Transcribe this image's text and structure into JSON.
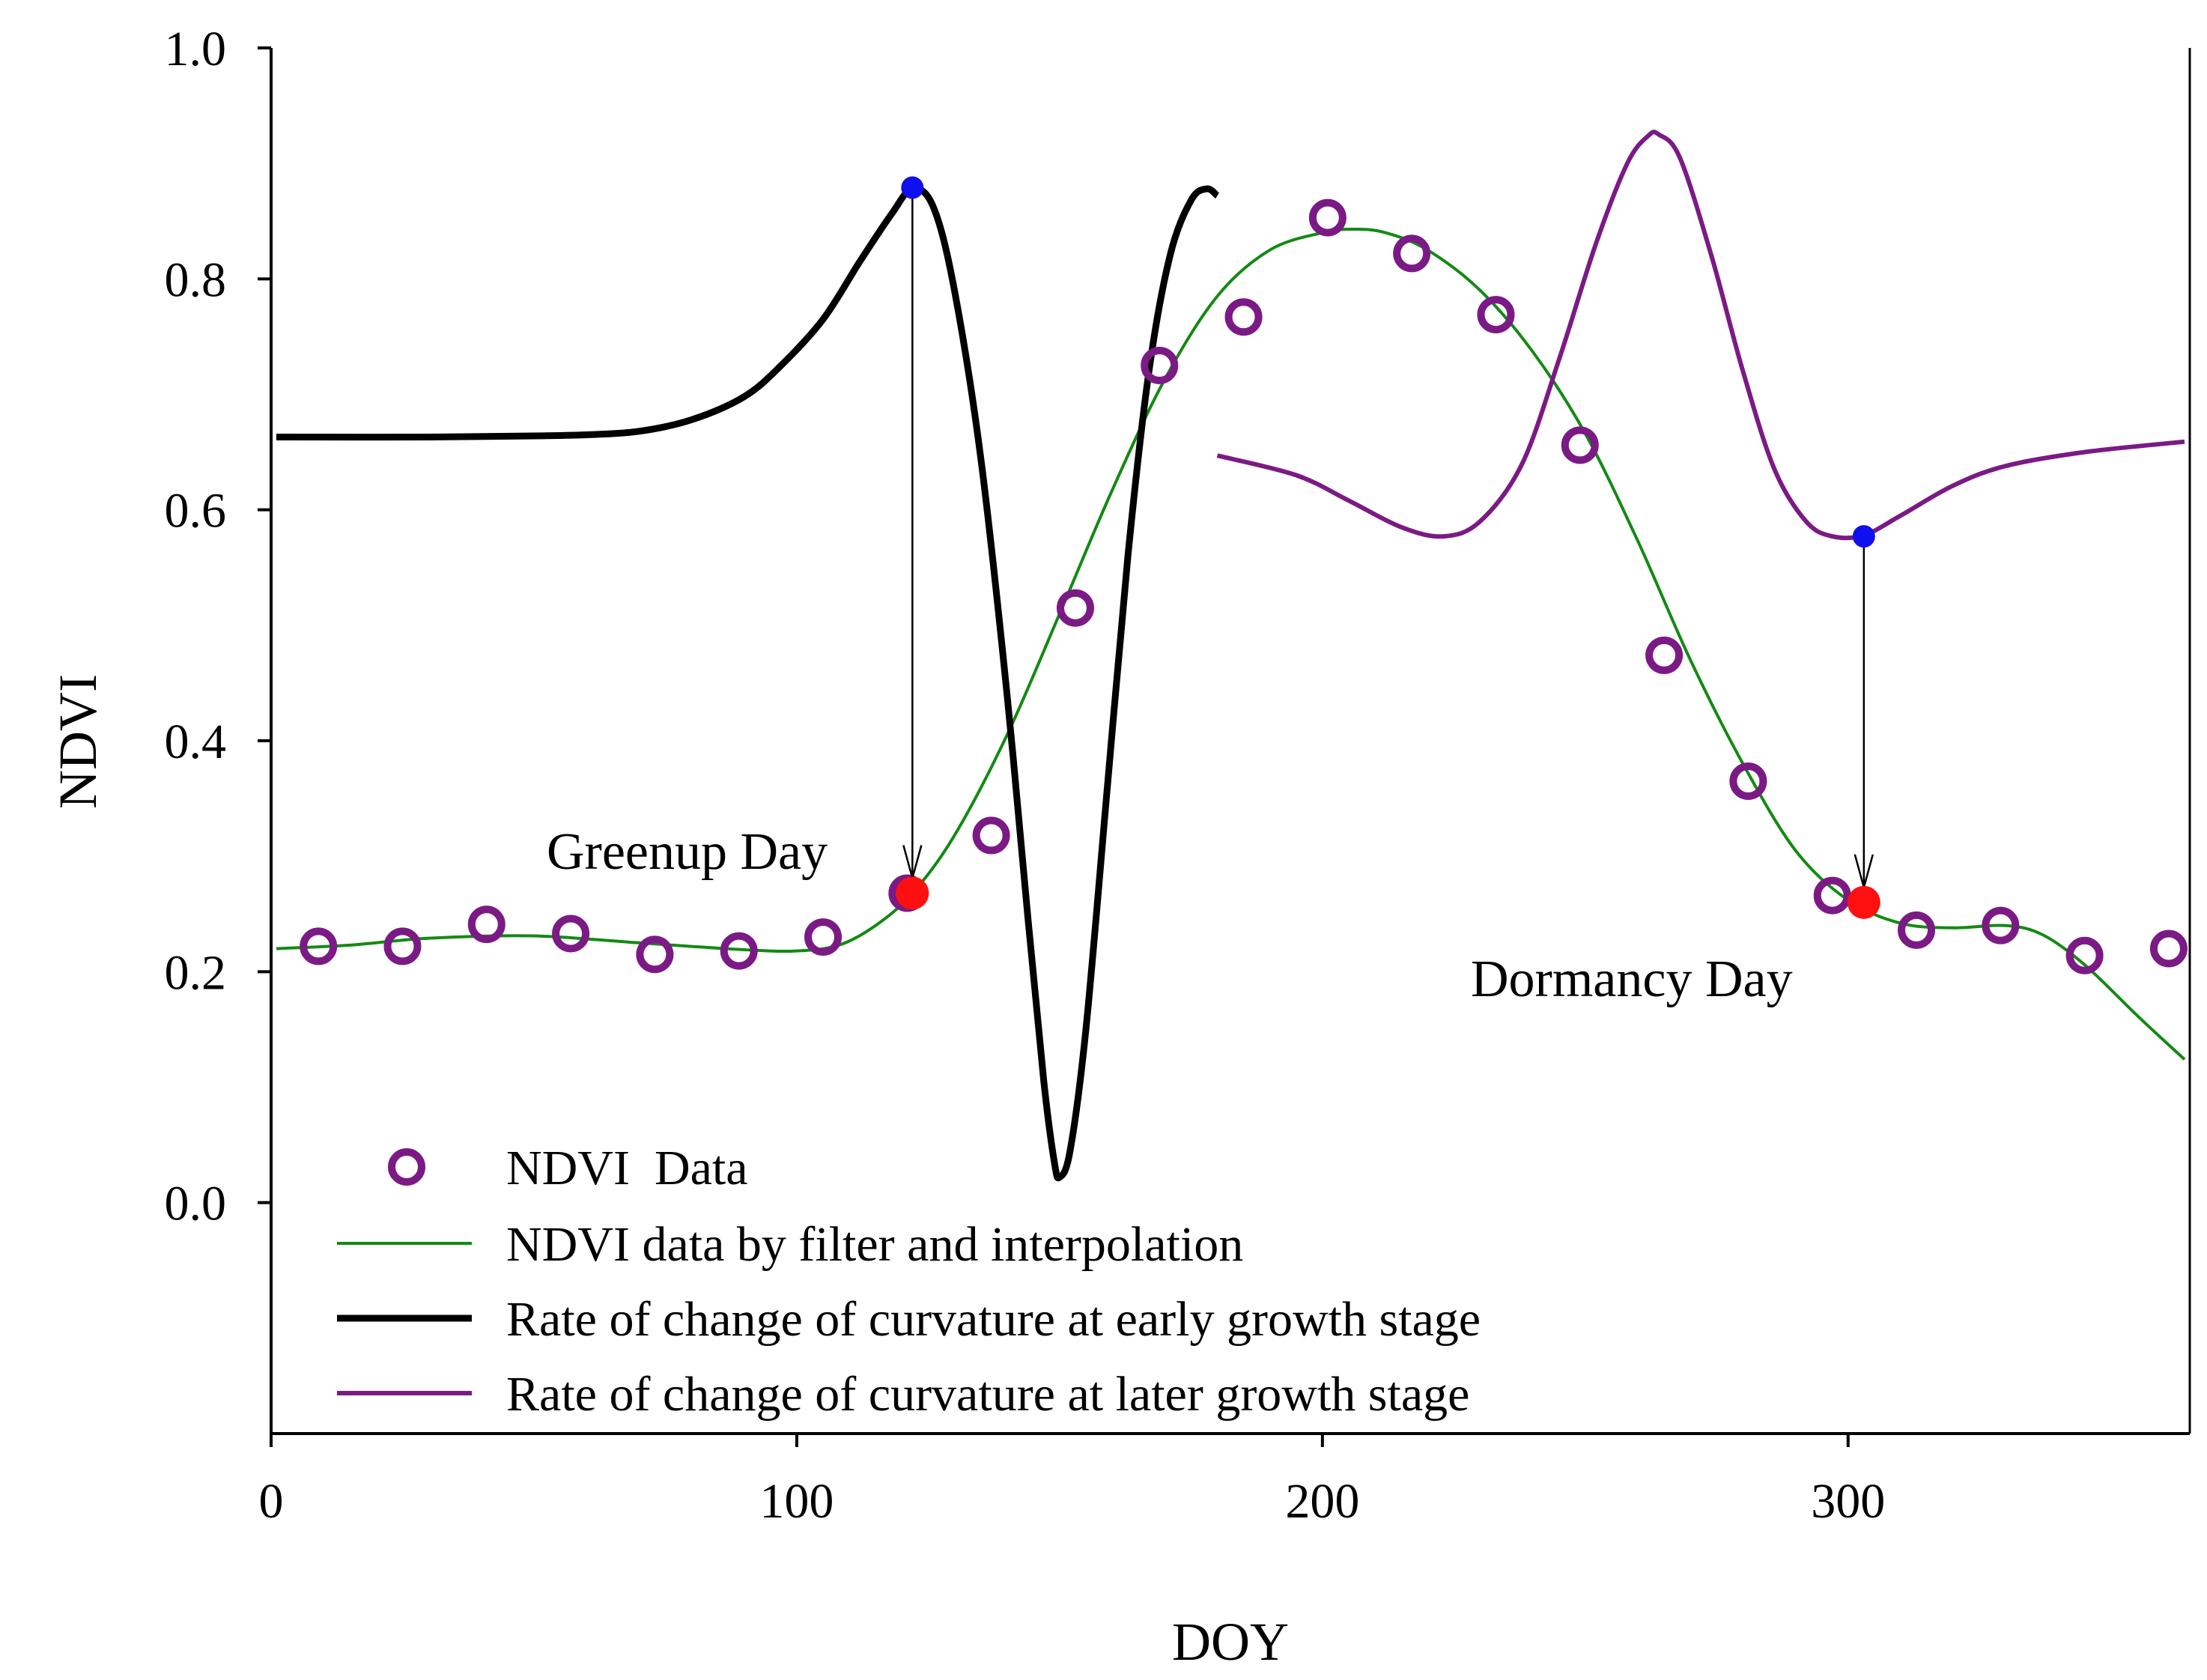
{
  "chart_data": {
    "type": "line",
    "xlabel": "DOY",
    "ylabel": "NDVI",
    "xlim": [
      0,
      365
    ],
    "ylim": [
      -0.2,
      1.0
    ],
    "x_ticks": [
      0,
      100,
      200,
      300
    ],
    "x_tick_labels": [
      "0",
      "100",
      "200",
      "300"
    ],
    "y_ticks": [
      0.0,
      0.2,
      0.4,
      0.6,
      0.8,
      1.0
    ],
    "y_tick_labels": [
      "0.0",
      "0.2",
      "0.4",
      "0.6",
      "0.8",
      "1.0"
    ],
    "grid": false,
    "legend_position": "bottom-left",
    "colors": {
      "ndvi_points": "#7b1a85",
      "ndvi_fitted": "#138a13",
      "early_rate": "#000000",
      "later_rate": "#7b1a85",
      "key_point": "#1010ee",
      "event_point": "#ff1010",
      "arrow": "#000000"
    },
    "series": [
      {
        "name": "NDVI  Data",
        "style": "open-circle",
        "points": [
          [
            9,
            0.222
          ],
          [
            25,
            0.222
          ],
          [
            41,
            0.241
          ],
          [
            57,
            0.233
          ],
          [
            73,
            0.215
          ],
          [
            89,
            0.218
          ],
          [
            105,
            0.23
          ],
          [
            121,
            0.268
          ],
          [
            137,
            0.318
          ],
          [
            153,
            0.515
          ],
          [
            169,
            0.725
          ],
          [
            185,
            0.767
          ],
          [
            201,
            0.853
          ],
          [
            217,
            0.822
          ],
          [
            233,
            0.769
          ],
          [
            249,
            0.656
          ],
          [
            265,
            0.474
          ],
          [
            281,
            0.365
          ],
          [
            297,
            0.266
          ],
          [
            313,
            0.236
          ],
          [
            329,
            0.24
          ],
          [
            345,
            0.214
          ],
          [
            361,
            0.22
          ]
        ]
      },
      {
        "name": "NDVI data by filter and interpolation",
        "style": "thin-line",
        "points": [
          [
            1,
            0.22
          ],
          [
            15,
            0.223
          ],
          [
            30,
            0.229
          ],
          [
            50,
            0.231
          ],
          [
            70,
            0.225
          ],
          [
            90,
            0.219
          ],
          [
            100,
            0.218
          ],
          [
            108,
            0.223
          ],
          [
            115,
            0.24
          ],
          [
            122,
            0.268
          ],
          [
            130,
            0.318
          ],
          [
            140,
            0.405
          ],
          [
            150,
            0.51
          ],
          [
            160,
            0.617
          ],
          [
            170,
            0.713
          ],
          [
            180,
            0.785
          ],
          [
            190,
            0.825
          ],
          [
            200,
            0.84
          ],
          [
            206,
            0.843
          ],
          [
            212,
            0.84
          ],
          [
            220,
            0.825
          ],
          [
            230,
            0.79
          ],
          [
            240,
            0.737
          ],
          [
            250,
            0.666
          ],
          [
            260,
            0.573
          ],
          [
            270,
            0.47
          ],
          [
            280,
            0.38
          ],
          [
            290,
            0.305
          ],
          [
            300,
            0.262
          ],
          [
            310,
            0.242
          ],
          [
            320,
            0.238
          ],
          [
            330,
            0.24
          ],
          [
            337,
            0.232
          ],
          [
            345,
            0.206
          ],
          [
            355,
            0.162
          ],
          [
            364,
            0.124
          ]
        ]
      },
      {
        "name": "Rate of change of curvature at early growth stage",
        "style": "thick-line",
        "points": [
          [
            1,
            0.663
          ],
          [
            30,
            0.663
          ],
          [
            50,
            0.664
          ],
          [
            60,
            0.665
          ],
          [
            70,
            0.668
          ],
          [
            80,
            0.678
          ],
          [
            90,
            0.698
          ],
          [
            97,
            0.725
          ],
          [
            105,
            0.765
          ],
          [
            112,
            0.815
          ],
          [
            118,
            0.856
          ],
          [
            122,
            0.878
          ],
          [
            126,
            0.862
          ],
          [
            130,
            0.79
          ],
          [
            135,
            0.645
          ],
          [
            140,
            0.44
          ],
          [
            144,
            0.245
          ],
          [
            147,
            0.105
          ],
          [
            149,
            0.035
          ],
          [
            150,
            0.022
          ],
          [
            152,
            0.045
          ],
          [
            155,
            0.15
          ],
          [
            159,
            0.355
          ],
          [
            163,
            0.56
          ],
          [
            167,
            0.72
          ],
          [
            171,
            0.82
          ],
          [
            175,
            0.868
          ],
          [
            178,
            0.878
          ],
          [
            180,
            0.872
          ]
        ]
      },
      {
        "name": "Rate of change of curvature at later growth stage",
        "style": "medium-line",
        "points": [
          [
            180,
            0.647
          ],
          [
            195,
            0.63
          ],
          [
            205,
            0.608
          ],
          [
            215,
            0.585
          ],
          [
            223,
            0.577
          ],
          [
            230,
            0.59
          ],
          [
            238,
            0.64
          ],
          [
            245,
            0.73
          ],
          [
            252,
            0.83
          ],
          [
            258,
            0.9
          ],
          [
            262,
            0.924
          ],
          [
            264,
            0.925
          ],
          [
            268,
            0.905
          ],
          [
            274,
            0.82
          ],
          [
            280,
            0.72
          ],
          [
            286,
            0.635
          ],
          [
            292,
            0.59
          ],
          [
            297,
            0.577
          ],
          [
            303,
            0.578
          ],
          [
            310,
            0.595
          ],
          [
            320,
            0.621
          ],
          [
            330,
            0.638
          ],
          [
            345,
            0.65
          ],
          [
            364,
            0.659
          ]
        ]
      }
    ],
    "markers": {
      "greenup_top": [
        122,
        0.879
      ],
      "greenup_day": [
        122,
        0.268
      ],
      "dormancy_top": [
        303,
        0.577
      ],
      "dormancy_day": [
        303,
        0.26
      ]
    },
    "annotations": {
      "greenup_label": "Greenup Day",
      "dormancy_label": "Dormancy Day"
    }
  }
}
